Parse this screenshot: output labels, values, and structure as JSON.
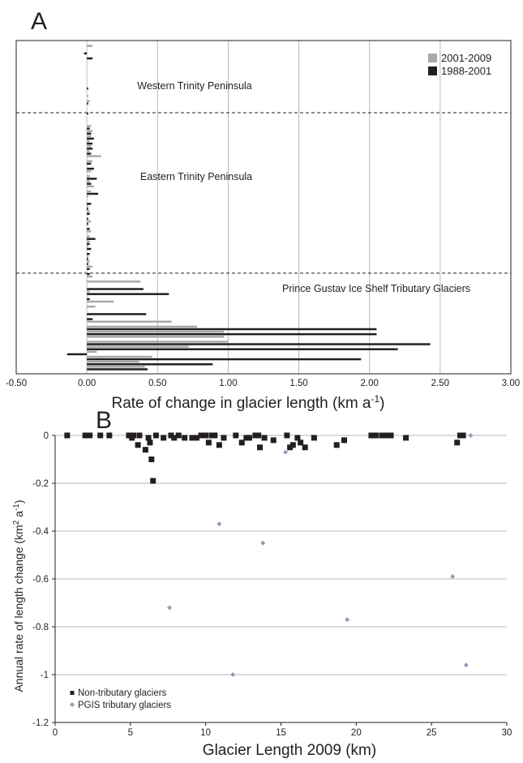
{
  "figure": {
    "panel_a_letter": "A",
    "panel_b_letter": "B"
  },
  "colors": {
    "series_2001_2009": "#a7a9ac",
    "series_1988_2001": "#231f20",
    "non_tributary": "#231f20",
    "pgis_tributary": "#8c9fb8",
    "gridline": "#b9b9b9",
    "frame": "#231f20"
  },
  "chart_data": [
    {
      "type": "bar",
      "orientation": "horizontal",
      "xlabel": "Rate of change in glacier length (km a",
      "xlabel_sup": "-1",
      "xlabel_close": ")",
      "xlim": [
        -0.5,
        3.0
      ],
      "xticks": [
        -0.5,
        0.0,
        0.5,
        1.0,
        1.5,
        2.0,
        2.5,
        3.0
      ],
      "xtick_labels": [
        "-0.50",
        "0.00",
        "0.50",
        "1.00",
        "1.50",
        "2.00",
        "2.50",
        "3.00"
      ],
      "grid": true,
      "legend_position": "top-right",
      "regions": [
        {
          "label": "Western Trinity Peninsula"
        },
        {
          "label": "Eastern Trinity Peninsula"
        },
        {
          "label": "Prince Gustav Ice Shelf Tributary Glaciers"
        }
      ],
      "region_boundaries_after_index": [
        13,
        45
      ],
      "series": [
        {
          "name": "2001-2009",
          "values": [
            0.04,
            0.0,
            0.0,
            0.0,
            0.0,
            0.0,
            0.0,
            0.0,
            0.0,
            0.0,
            0.01,
            0.02,
            0.0,
            0.0,
            0.0,
            0.0,
            0.03,
            0.04,
            0.03,
            0.02,
            0.03,
            0.02,
            0.1,
            0.04,
            0.0,
            0.03,
            0.02,
            0.02,
            0.05,
            0.03,
            0.01,
            0.0,
            0.01,
            0.02,
            0.0,
            0.03,
            0.0,
            0.03,
            0.02,
            0.02,
            0.01,
            0.0,
            0.01,
            0.02,
            0.04,
            0.0,
            0.04,
            0.38,
            0.0,
            0.02,
            0.0,
            0.19,
            0.06,
            0.0,
            0.0,
            0.6,
            0.78,
            0.97,
            0.97,
            1.0,
            0.72,
            0.07,
            0.46,
            0.37,
            0.41
          ]
        },
        {
          "name": "1988-2001",
          "values": [
            0.0,
            -0.02,
            0.04,
            0.0,
            0.0,
            0.0,
            0.0,
            0.0,
            0.01,
            0.0,
            0.0,
            0.01,
            0.0,
            0.01,
            0.0,
            0.0,
            0.02,
            0.03,
            0.05,
            0.04,
            0.04,
            0.03,
            0.0,
            0.03,
            0.05,
            0.0,
            0.07,
            0.03,
            0.0,
            0.08,
            0.0,
            0.03,
            0.01,
            0.02,
            0.01,
            0.01,
            0.02,
            0.0,
            0.06,
            0.02,
            0.03,
            0.02,
            0.01,
            0.01,
            0.02,
            0.02,
            0.0,
            0.0,
            0.4,
            0.58,
            0.02,
            0.0,
            0.0,
            0.42,
            0.04,
            0.0,
            2.05,
            2.05,
            0.0,
            2.43,
            2.2,
            -0.14,
            1.94,
            0.89,
            0.43
          ]
        }
      ]
    },
    {
      "type": "scatter",
      "xlabel": "Glacier Length 2009 (km)",
      "ylabel": "Annual rate of length change (km",
      "ylabel_sup": "2",
      "ylabel_tail": " a",
      "ylabel_sup2": "-1",
      "ylabel_close": ")",
      "xlim": [
        0,
        30
      ],
      "ylim": [
        -1.2,
        0
      ],
      "xticks": [
        0,
        5,
        10,
        15,
        20,
        25,
        30
      ],
      "xtick_labels": [
        "0",
        "5",
        "10",
        "15",
        "20",
        "25",
        "30"
      ],
      "yticks": [
        0,
        -0.2,
        -0.4,
        -0.6,
        -0.8,
        -1,
        -1.2
      ],
      "ytick_labels": [
        "0",
        "-0.2",
        "-0.4",
        "-0.6",
        "-0.8",
        "-1",
        "-1.2"
      ],
      "grid": true,
      "legend_position": "bottom-left",
      "series": [
        {
          "name": "Non-tributary glaciers",
          "marker": "square",
          "x": [
            0.8,
            2.0,
            2.1,
            2.3,
            3.0,
            3.6,
            4.9,
            5.1,
            5.2,
            5.5,
            5.6,
            6.0,
            6.2,
            6.3,
            6.4,
            6.5,
            6.7,
            7.2,
            7.7,
            7.9,
            8.2,
            8.6,
            9.1,
            9.4,
            9.7,
            10.0,
            10.2,
            10.4,
            10.6,
            10.9,
            11.2,
            12.0,
            12.4,
            12.7,
            12.9,
            13.3,
            13.5,
            13.6,
            13.9,
            14.5,
            15.4,
            15.6,
            15.8,
            16.1,
            16.3,
            16.6,
            17.2,
            18.7,
            19.2,
            21.0,
            21.3,
            21.7,
            22.0,
            22.3,
            23.3,
            26.7,
            26.9,
            27.1
          ],
          "y": [
            0.0,
            0.0,
            0.0,
            0.0,
            0.0,
            0.0,
            0.0,
            -0.01,
            0.0,
            -0.04,
            0.0,
            -0.06,
            -0.01,
            -0.03,
            -0.1,
            -0.19,
            0.0,
            -0.01,
            0.0,
            -0.01,
            0.0,
            -0.01,
            -0.01,
            -0.01,
            0.0,
            0.0,
            -0.03,
            0.0,
            0.0,
            -0.04,
            -0.01,
            0.0,
            -0.03,
            -0.01,
            -0.01,
            0.0,
            0.0,
            -0.05,
            -0.01,
            -0.02,
            0.0,
            -0.05,
            -0.04,
            -0.01,
            -0.03,
            -0.05,
            -0.01,
            -0.04,
            -0.02,
            0.0,
            0.0,
            0.0,
            0.0,
            0.0,
            -0.01,
            -0.03,
            0.0,
            0.0
          ]
        },
        {
          "name": "PGIS tributary glaciers",
          "marker": "diamond",
          "x": [
            7.6,
            10.9,
            11.8,
            13.8,
            15.3,
            19.4,
            26.4,
            27.3,
            27.6
          ],
          "y": [
            -0.72,
            -0.37,
            -1.0,
            -0.45,
            -0.07,
            -0.77,
            -0.59,
            -0.96,
            0.0
          ]
        }
      ]
    }
  ]
}
